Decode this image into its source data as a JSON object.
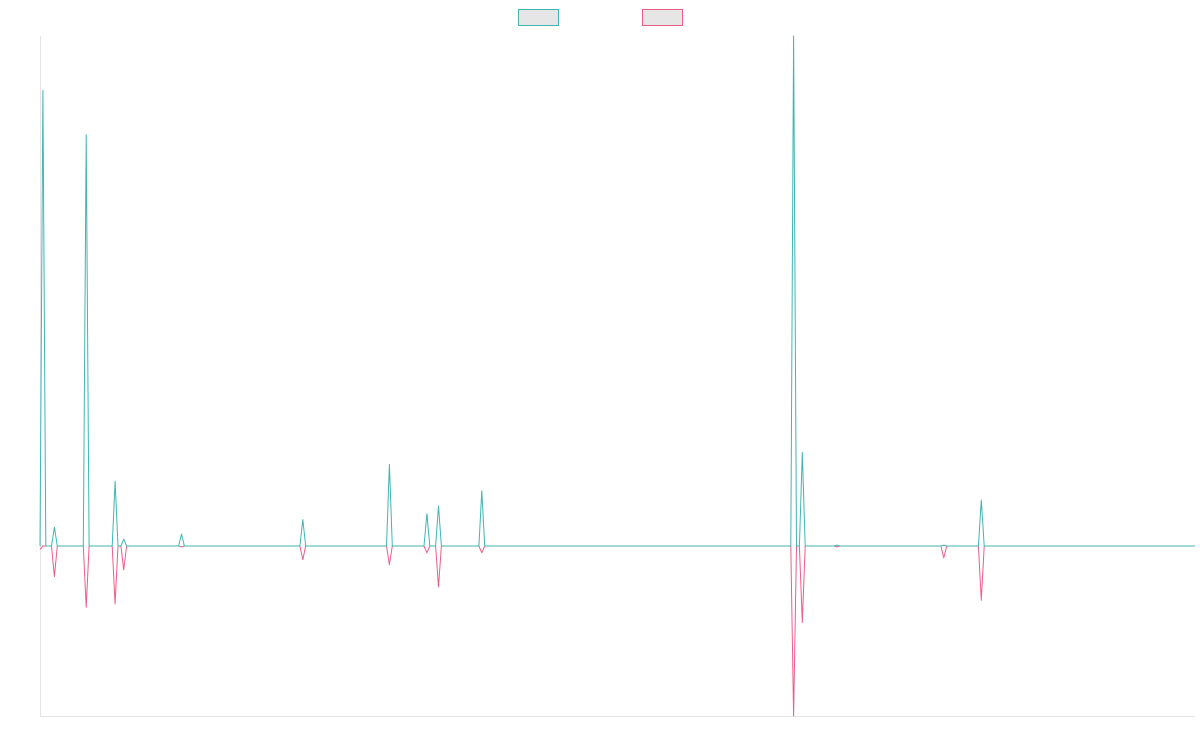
{
  "colors": {
    "series_a": "#3fb6b2",
    "series_b": "#ec5e86",
    "axis": "#e4e4e4",
    "swatch_fill": "#e6e6e6",
    "background": "#ffffff"
  },
  "chart_data": {
    "type": "line",
    "title": "",
    "xlabel": "",
    "ylabel": "",
    "grid": false,
    "legend": "top-center",
    "xlim": [
      0,
      400
    ],
    "ylim": [
      -1000,
      3000
    ],
    "x": [
      0,
      1,
      2,
      4,
      5,
      6,
      7,
      15,
      16,
      17,
      21,
      22,
      25,
      26,
      27,
      28,
      29,
      30,
      48,
      49,
      50,
      90,
      91,
      92,
      120,
      121,
      122,
      133,
      134,
      135,
      137,
      138,
      139,
      152,
      153,
      154,
      260,
      261,
      262,
      263,
      264,
      265,
      275,
      276,
      277,
      312,
      313,
      314,
      325,
      326,
      327,
      400
    ],
    "series": [
      {
        "name": "",
        "values": [
          0,
          2680,
          0,
          0,
          110,
          0,
          0,
          0,
          2420,
          0,
          0,
          0,
          0,
          380,
          0,
          0,
          40,
          0,
          0,
          70,
          0,
          0,
          155,
          0,
          0,
          480,
          0,
          0,
          190,
          0,
          0,
          235,
          0,
          0,
          325,
          0,
          0,
          3000,
          0,
          0,
          550,
          0,
          0,
          5,
          0,
          0,
          5,
          0,
          0,
          270,
          0,
          0
        ]
      },
      {
        "name": "",
        "values": [
          -20,
          0,
          0,
          0,
          -180,
          0,
          0,
          0,
          -360,
          0,
          0,
          0,
          0,
          -340,
          0,
          0,
          -140,
          0,
          0,
          -5,
          0,
          0,
          -80,
          0,
          0,
          -110,
          0,
          0,
          -40,
          0,
          0,
          -240,
          0,
          0,
          -40,
          0,
          0,
          -1000,
          0,
          0,
          -450,
          0,
          0,
          -5,
          0,
          0,
          -70,
          0,
          0,
          -320,
          0,
          0
        ]
      }
    ]
  }
}
